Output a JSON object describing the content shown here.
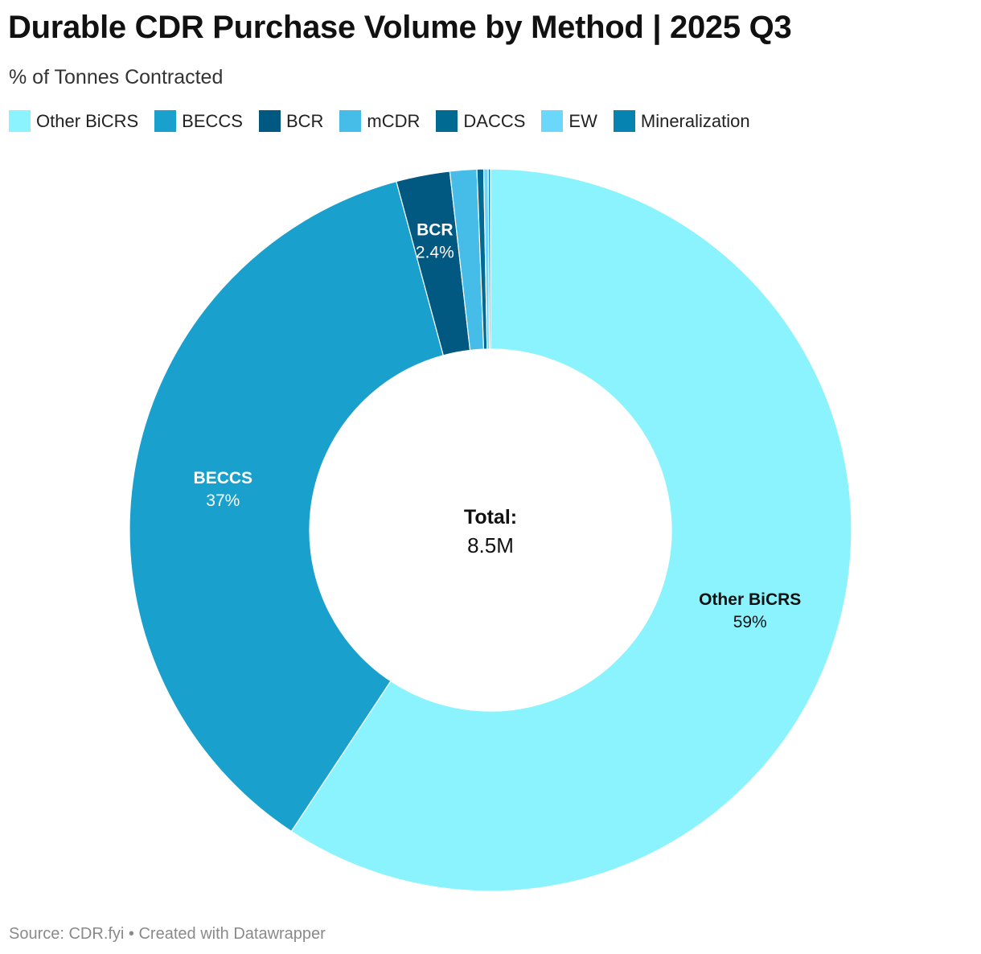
{
  "title": "Durable CDR Purchase Volume by Method | 2025 Q3",
  "subtitle": "% of Tonnes Contracted",
  "footer": "Source: CDR.fyi • Created with Datawrapper",
  "center": {
    "label": "Total:",
    "value": "8.5M"
  },
  "chart_data": {
    "type": "pie",
    "variant": "donut",
    "title": "Durable CDR Purchase Volume by Method | 2025 Q3",
    "subtitle": "% of Tonnes Contracted",
    "unit": "%",
    "total": "8.5M",
    "legend_position": "top-left",
    "slices": [
      {
        "name": "Other BiCRS",
        "value": 59.3,
        "label": "59%",
        "color": "#8af3fd",
        "label_color": "#111111",
        "show_label": true
      },
      {
        "name": "BECCS",
        "value": 36.5,
        "label": "37%",
        "color": "#19a0cd",
        "label_color": "#ffffff",
        "show_label": true
      },
      {
        "name": "BCR",
        "value": 2.4,
        "label": "2.4%",
        "color": "#015880",
        "label_color": "#ffffff",
        "show_label": true
      },
      {
        "name": "mCDR",
        "value": 1.2,
        "label": "",
        "color": "#45bde8",
        "label_color": "#ffffff",
        "show_label": false
      },
      {
        "name": "DACCS",
        "value": 0.3,
        "label": "",
        "color": "#016a93",
        "label_color": "#ffffff",
        "show_label": false
      },
      {
        "name": "EW",
        "value": 0.2,
        "label": "",
        "color": "#6bd7fb",
        "label_color": "#ffffff",
        "show_label": false
      },
      {
        "name": "Mineralization",
        "value": 0.1,
        "label": "",
        "color": "#0683b0",
        "label_color": "#ffffff",
        "show_label": false
      }
    ]
  }
}
